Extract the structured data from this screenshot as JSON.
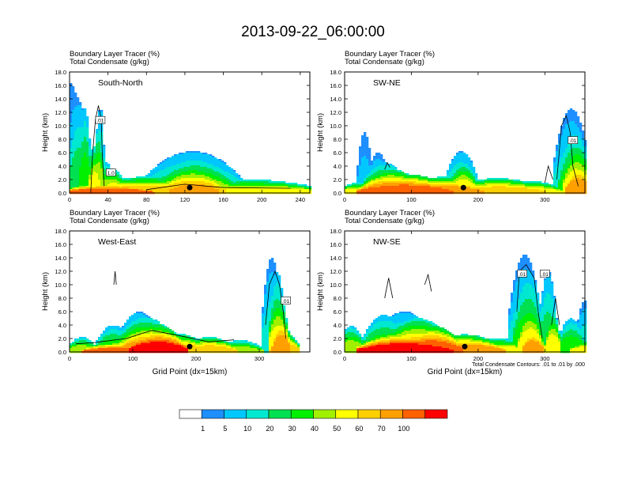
{
  "title": "2013-09-22_06:00:00",
  "panel_header": {
    "line1": "Boundary Layer Tracer",
    "line1_unit": "(%)",
    "line2": "Total Condensate",
    "line2_unit": "(g/kg)"
  },
  "y_axis_label": "Height (km)",
  "x_axis_label": "Grid Point (dx=15km)",
  "contour_note": "Total Condensate Contours: .01 to .01 by .000",
  "colorbar": {
    "levels": [
      "1",
      "5",
      "10",
      "20",
      "30",
      "40",
      "50",
      "60",
      "70",
      "100"
    ],
    "colors": [
      "#ffffff",
      "#1e8fff",
      "#00c8ff",
      "#00e8d0",
      "#00e050",
      "#00f000",
      "#a0f000",
      "#ffff00",
      "#ffd000",
      "#ffa000",
      "#ff6000",
      "#ff0000"
    ]
  },
  "chart_data": [
    {
      "type": "heatmap",
      "panel_label": "South-North",
      "title": "Boundary Layer Tracer (%) / Total Condensate (g/kg)",
      "ylabel": "Height (km)",
      "xlim": [
        0,
        250
      ],
      "ylim": [
        0,
        18
      ],
      "x_ticks": [
        "0",
        "40",
        "80",
        "120",
        "160",
        "200",
        "240"
      ],
      "y_ticks": [
        "0.0",
        "2.0",
        "4.0",
        "6.0",
        "8.0",
        "10.0",
        "12.0",
        "14.0",
        "16.0",
        "18.0"
      ],
      "contour_labels": [
        ".01",
        "1.0"
      ],
      "marker_x": 125
    },
    {
      "type": "heatmap",
      "panel_label": "SW-NE",
      "title": "Boundary Layer Tracer (%) / Total Condensate (g/kg)",
      "ylabel": "Height (km)",
      "xlim": [
        0,
        360
      ],
      "ylim": [
        0,
        18
      ],
      "x_ticks": [
        "0",
        "100",
        "200",
        "300"
      ],
      "y_ticks": [
        "0.0",
        "2.0",
        "4.0",
        "6.0",
        "8.0",
        "10.0",
        "12.0",
        "14.0",
        "16.0",
        "18.0"
      ],
      "contour_labels": [
        ".01"
      ],
      "marker_x": 178
    },
    {
      "type": "heatmap",
      "panel_label": "West-East",
      "title": "Boundary Layer Tracer (%) / Total Condensate (g/kg)",
      "ylabel": "Height (km)",
      "xlabel": "Grid Point (dx=15km)",
      "xlim": [
        0,
        380
      ],
      "ylim": [
        0,
        18
      ],
      "x_ticks": [
        "0",
        "100",
        "200",
        "300"
      ],
      "y_ticks": [
        "0.0",
        "2.0",
        "4.0",
        "6.0",
        "8.0",
        "10.0",
        "12.0",
        "14.0",
        "16.0",
        "18.0"
      ],
      "contour_labels": [
        ".01"
      ],
      "marker_x": 190
    },
    {
      "type": "heatmap",
      "panel_label": "NW-SE",
      "title": "Boundary Layer Tracer (%) / Total Condensate (g/kg)",
      "ylabel": "Height (km)",
      "xlabel": "Grid Point (dx=15km)",
      "xlim": [
        0,
        360
      ],
      "ylim": [
        0,
        18
      ],
      "x_ticks": [
        "0",
        "100",
        "200",
        "300"
      ],
      "y_ticks": [
        "0.0",
        "2.0",
        "4.0",
        "6.0",
        "8.0",
        "10.0",
        "12.0",
        "14.0",
        "16.0",
        "18.0"
      ],
      "contour_labels": [
        ".01",
        ".01"
      ],
      "marker_x": 180
    }
  ]
}
